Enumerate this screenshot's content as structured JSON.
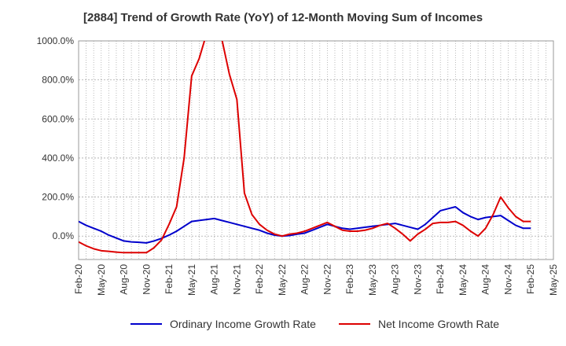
{
  "chart_data": {
    "type": "line",
    "title": "[2884]  Trend of Growth Rate (YoY) of 12-Month Moving Sum of Incomes",
    "xlabel": "",
    "ylabel": "",
    "x_ticks": [
      "Feb-20",
      "May-20",
      "Aug-20",
      "Nov-20",
      "Feb-21",
      "May-21",
      "Aug-21",
      "Nov-21",
      "Feb-22",
      "May-22",
      "Aug-22",
      "Nov-22",
      "Feb-23",
      "May-23",
      "Aug-23",
      "Nov-23",
      "Feb-24",
      "May-24",
      "Aug-24",
      "Nov-24",
      "Feb-25",
      "May-25"
    ],
    "y_ticks": [
      "0.0%",
      "200.0%",
      "400.0%",
      "600.0%",
      "800.0%",
      "1000.0%"
    ],
    "ylim": [
      -120,
      1000
    ],
    "grid": true,
    "legend_position": "bottom",
    "x": [
      "2020-02",
      "2020-03",
      "2020-04",
      "2020-05",
      "2020-06",
      "2020-07",
      "2020-08",
      "2020-09",
      "2020-10",
      "2020-11",
      "2020-12",
      "2021-01",
      "2021-02",
      "2021-03",
      "2021-04",
      "2021-05",
      "2021-06",
      "2021-07",
      "2021-08",
      "2021-09",
      "2021-10",
      "2021-11",
      "2021-12",
      "2022-01",
      "2022-02",
      "2022-03",
      "2022-04",
      "2022-05",
      "2022-06",
      "2022-07",
      "2022-08",
      "2022-09",
      "2022-10",
      "2022-11",
      "2022-12",
      "2023-01",
      "2023-02",
      "2023-03",
      "2023-04",
      "2023-05",
      "2023-06",
      "2023-07",
      "2023-08",
      "2023-09",
      "2023-10",
      "2023-11",
      "2023-12",
      "2024-01",
      "2024-02",
      "2024-03",
      "2024-04",
      "2024-05",
      "2024-06",
      "2024-07",
      "2024-08",
      "2024-09",
      "2024-10",
      "2024-11",
      "2024-12",
      "2025-01",
      "2025-02"
    ],
    "series": [
      {
        "name": "Ordinary Income Growth Rate",
        "color": "#0000cc",
        "values": [
          75,
          55,
          40,
          25,
          5,
          -10,
          -25,
          -30,
          -32,
          -35,
          -25,
          -12,
          5,
          25,
          50,
          75,
          80,
          85,
          90,
          80,
          70,
          60,
          50,
          40,
          30,
          15,
          5,
          0,
          3,
          10,
          15,
          30,
          45,
          60,
          50,
          40,
          35,
          40,
          45,
          50,
          55,
          60,
          65,
          55,
          45,
          35,
          60,
          95,
          130,
          140,
          150,
          120,
          100,
          85,
          95,
          100,
          105,
          80,
          55,
          40,
          40
        ],
        "labels": []
      },
      {
        "name": "Net Income Growth Rate",
        "color": "#dd0000",
        "values": [
          -30,
          -50,
          -65,
          -75,
          -78,
          -82,
          -85,
          -85,
          -85,
          -85,
          -60,
          -20,
          60,
          150,
          400,
          820,
          910,
          1040,
          1040,
          1010,
          830,
          700,
          220,
          110,
          60,
          30,
          10,
          0,
          10,
          15,
          25,
          40,
          55,
          70,
          50,
          30,
          25,
          25,
          30,
          40,
          55,
          65,
          40,
          10,
          -25,
          10,
          35,
          65,
          70,
          70,
          75,
          55,
          25,
          0,
          40,
          110,
          200,
          145,
          100,
          75,
          75
        ],
        "labels": []
      }
    ]
  }
}
